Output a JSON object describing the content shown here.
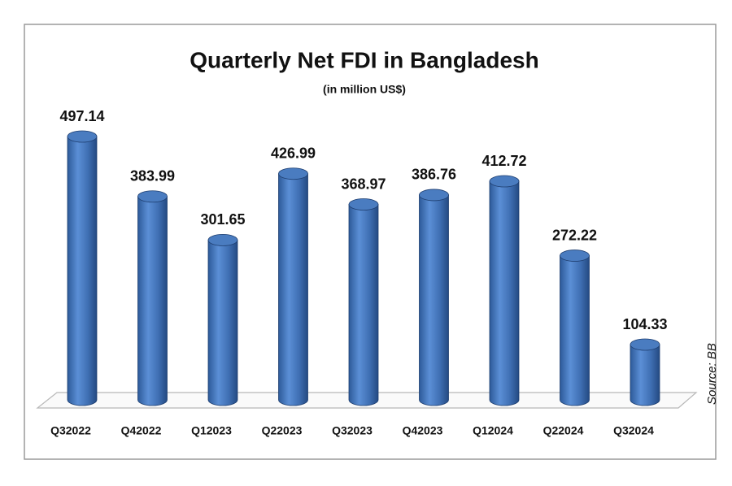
{
  "chart_data": {
    "type": "bar",
    "title": "Quarterly Net FDI in Bangladesh",
    "subtitle": "(in million US$)",
    "categories": [
      "Q32022",
      "Q42022",
      "Q12023",
      "Q22023",
      "Q32023",
      "Q42023",
      "Q12024",
      "Q22024",
      "Q32024"
    ],
    "values": [
      497.14,
      383.99,
      301.65,
      426.99,
      368.97,
      386.76,
      412.72,
      272.22,
      104.33
    ],
    "color": "#4a7cc0",
    "source": "Source: BB"
  }
}
